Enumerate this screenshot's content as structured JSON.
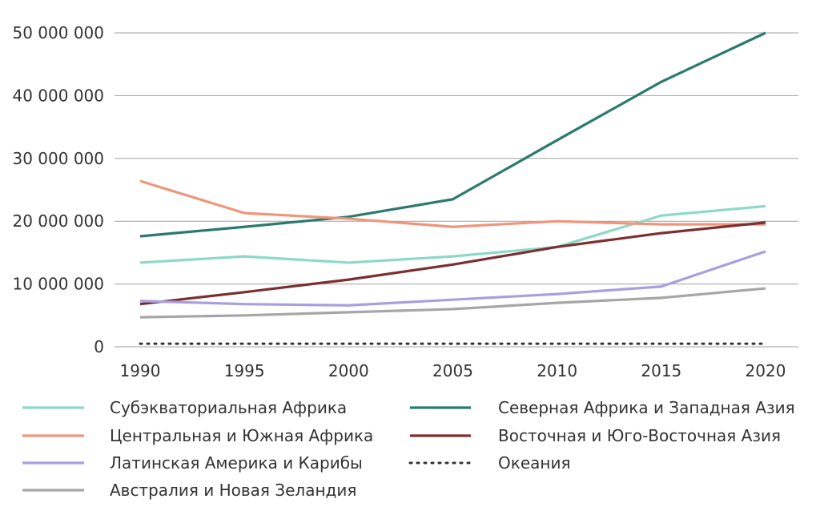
{
  "chart_data": {
    "type": "line",
    "title": "",
    "xlabel": "",
    "ylabel": "",
    "x": [
      1990,
      1995,
      2000,
      2005,
      2010,
      2015,
      2020
    ],
    "ylim": [
      0,
      50000000
    ],
    "yticks": [
      0,
      10000000,
      20000000,
      30000000,
      40000000,
      50000000
    ],
    "ytick_labels": [
      "0",
      "10 000 000",
      "20 000 000",
      "30 000 000",
      "40 000 000",
      "50 000 000"
    ],
    "xtick_labels": [
      "1990",
      "1995",
      "2000",
      "2005",
      "2010",
      "2015",
      "2020"
    ],
    "grid": "horizontal",
    "legend_position": "bottom",
    "series": [
      {
        "name": "Субэкваториальная Африка",
        "color": "#8dd9c8",
        "dash": "solid",
        "values": [
          13400000,
          14400000,
          13400000,
          14400000,
          15900000,
          20900000,
          22400000
        ]
      },
      {
        "name": "Северная Африка и Западная Азия",
        "color": "#2a7a6e",
        "dash": "solid",
        "values": [
          17600000,
          19100000,
          20700000,
          23500000,
          32900000,
          42200000,
          50000000
        ]
      },
      {
        "name": "Центральная и Южная Африка",
        "color": "#f0957a",
        "dash": "solid",
        "values": [
          26400000,
          21300000,
          20400000,
          19100000,
          20000000,
          19500000,
          19500000
        ]
      },
      {
        "name": "Восточная и Юго-Восточная Азия",
        "color": "#7c2f2f",
        "dash": "solid",
        "values": [
          6800000,
          8700000,
          10700000,
          13100000,
          15900000,
          18100000,
          19800000
        ]
      },
      {
        "name": "Латинская Америка и Карибы",
        "color": "#a99ee0",
        "dash": "solid",
        "values": [
          7300000,
          6800000,
          6600000,
          7500000,
          8400000,
          9600000,
          15200000
        ]
      },
      {
        "name": "Океания",
        "color": "#333333",
        "dash": "dotted",
        "values": [
          500000,
          500000,
          500000,
          500000,
          500000,
          500000,
          500000
        ]
      },
      {
        "name": "Австралия и Новая Зеландия",
        "color": "#a6a6a6",
        "dash": "solid",
        "values": [
          4700000,
          5000000,
          5500000,
          6000000,
          7000000,
          7800000,
          9300000
        ]
      }
    ]
  }
}
